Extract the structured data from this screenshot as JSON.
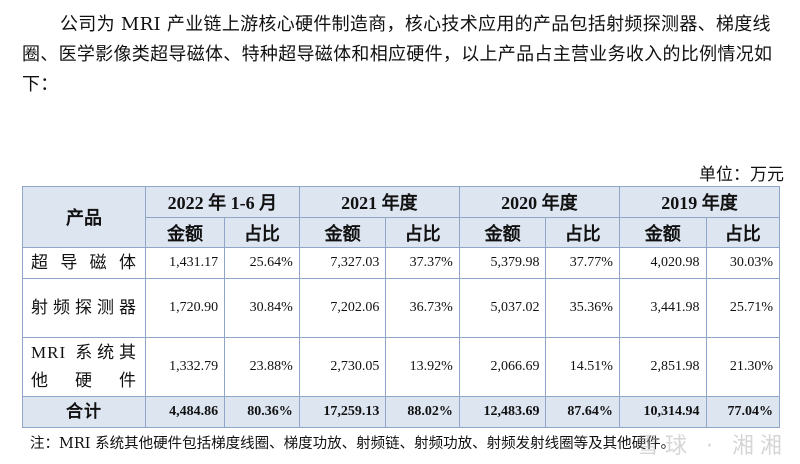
{
  "intro_text": "公司为 MRI 产业链上游核心硬件制造商，核心技术应用的产品包括射频探测器、梯度线圈、医学影像类超导磁体、特种超导磁体和相应硬件，以上产品占主营业务收入的比例情况如下：",
  "unit_label": "单位：万元",
  "table": {
    "product_header": "产品",
    "periods": [
      "2022 年 1-6 月",
      "2021 年度",
      "2020 年度",
      "2019 年度"
    ],
    "amount_label": "金额",
    "ratio_label": "占比",
    "rows": [
      {
        "product": "超导磁体",
        "cells": [
          "1,431.17",
          "25.64%",
          "7,327.03",
          "37.37%",
          "5,379.98",
          "37.77%",
          "4,020.98",
          "30.03%"
        ]
      },
      {
        "product": "射频探测器",
        "cells": [
          "1,720.90",
          "30.84%",
          "7,202.06",
          "36.73%",
          "5,037.02",
          "35.36%",
          "3,441.98",
          "25.71%"
        ]
      },
      {
        "product": "MRI 系统其他硬件",
        "cells": [
          "1,332.79",
          "23.88%",
          "2,730.05",
          "13.92%",
          "2,066.69",
          "14.51%",
          "2,851.98",
          "21.30%"
        ]
      }
    ],
    "total": {
      "product": "合计",
      "cells": [
        "4,484.86",
        "80.36%",
        "17,259.13",
        "88.02%",
        "12,483.69",
        "87.64%",
        "10,314.94",
        "77.04%"
      ]
    }
  },
  "note_text": "注：MRI 系统其他硬件包括梯度线圈、梯度功放、射频链、射频功放、射频发射线圈等及其他硬件。",
  "watermark_text": "雪球 · 湘湘"
}
